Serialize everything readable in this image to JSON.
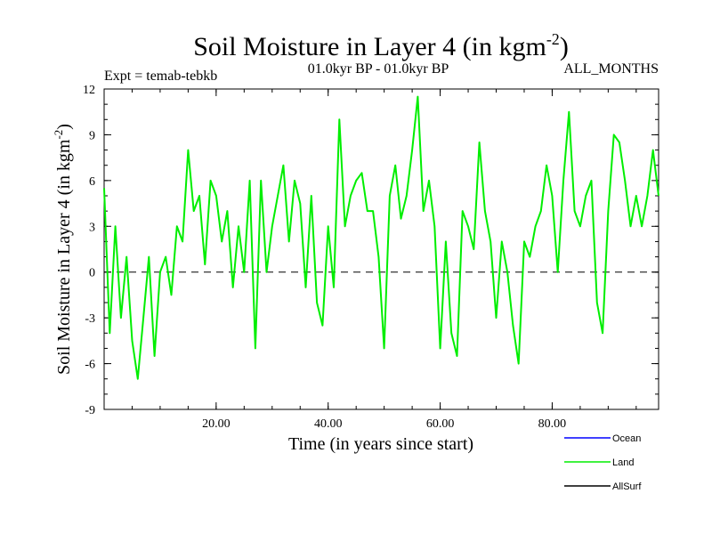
{
  "chart_data": {
    "type": "line",
    "title": "Soil Moisture in Layer 4 (in kgm",
    "title_sup": "-2",
    "title_close": ")",
    "experiment": "Expt = temab-tebkb",
    "period": "01.0kyr BP - 01.0kyr BP",
    "months": "ALL_MONTHS",
    "xlabel": "Time (in years since start)",
    "ylabel": "Soil Moisture in Layer 4 (in kgm",
    "ylabel_sup": "-2",
    "ylabel_close": ")",
    "xlim": [
      0,
      99
    ],
    "ylim": [
      -9,
      12
    ],
    "xticks": [
      20,
      40,
      60,
      80
    ],
    "xtick_labels": [
      "20.00",
      "40.00",
      "60.00",
      "80.00"
    ],
    "yticks": [
      -9,
      -6,
      -3,
      0,
      3,
      6,
      9,
      12
    ],
    "ytick_labels": [
      "-9",
      "-6",
      "-3",
      "0",
      "3",
      "6",
      "9",
      "12"
    ],
    "zero_line": true,
    "legend": [
      {
        "name": "Ocean",
        "color": "#0000ff"
      },
      {
        "name": "Land",
        "color": "#00ee00"
      },
      {
        "name": "AllSurf",
        "color": "#000000"
      }
    ],
    "series": [
      {
        "name": "Land",
        "color": "#00ee00",
        "x": [
          0,
          1,
          2,
          3,
          4,
          5,
          6,
          7,
          8,
          9,
          10,
          11,
          12,
          13,
          14,
          15,
          16,
          17,
          18,
          19,
          20,
          21,
          22,
          23,
          24,
          25,
          26,
          27,
          28,
          29,
          30,
          31,
          32,
          33,
          34,
          35,
          36,
          37,
          38,
          39,
          40,
          41,
          42,
          43,
          44,
          45,
          46,
          47,
          48,
          49,
          50,
          51,
          52,
          53,
          54,
          55,
          56,
          57,
          58,
          59,
          60,
          61,
          62,
          63,
          64,
          65,
          66,
          67,
          68,
          69,
          70,
          71,
          72,
          73,
          74,
          75,
          76,
          77,
          78,
          79,
          80,
          81,
          82,
          83,
          84,
          85,
          86,
          87,
          88,
          89,
          90,
          91,
          92,
          93,
          94,
          95,
          96,
          97,
          98,
          99
        ],
        "values": [
          5.5,
          -4,
          3,
          -3,
          1,
          -4.5,
          -7,
          -3,
          1,
          -5.5,
          0,
          1,
          -1.5,
          3,
          2,
          8,
          4,
          5,
          0.5,
          6,
          5,
          2,
          4,
          -1,
          3,
          0,
          6,
          -5,
          6,
          0,
          3,
          5,
          7,
          2,
          6,
          4.5,
          -1,
          5,
          -2,
          -3.5,
          3,
          -1,
          10,
          3,
          5,
          6,
          6.5,
          4,
          4,
          1,
          -5,
          5,
          7,
          3.5,
          5,
          8,
          11.5,
          4,
          6,
          3,
          -5,
          2,
          -4,
          -5.5,
          4,
          3,
          1.5,
          8.5,
          4,
          2,
          -3,
          2,
          0,
          -3.5,
          -6,
          2,
          1,
          3,
          4,
          7,
          5,
          0,
          6,
          10.5,
          4,
          3,
          5,
          6,
          -2,
          -4,
          4,
          9,
          8.5,
          6,
          3,
          5,
          3,
          5,
          8,
          5
        ]
      }
    ]
  }
}
